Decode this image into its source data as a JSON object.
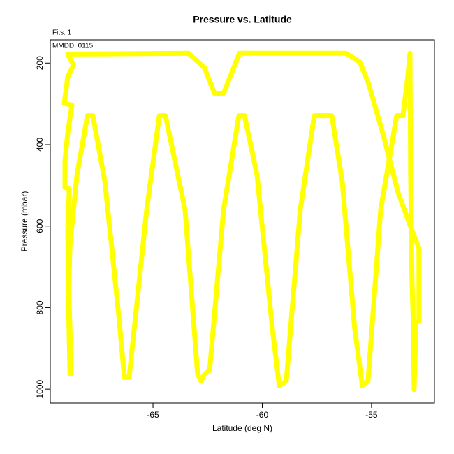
{
  "chart_data": {
    "type": "line",
    "title": "Pressure vs. Latitude",
    "subtitle": "Fits: 1",
    "annotation": "MMDD: 0115",
    "xlabel": "Latitude (deg N)",
    "ylabel": "Pressure (mbar)",
    "xlim": [
      -69.7,
      -52.12
    ],
    "ylim": [
      1034,
      143
    ],
    "xticks": [
      -65,
      -60,
      -55
    ],
    "yticks": [
      200,
      400,
      600,
      800,
      1000
    ],
    "grid": false,
    "x": [
      -68.74,
      -68.8,
      -68.87,
      -68.9,
      -68.83,
      -69.03,
      -69.03,
      -68.9,
      -68.71,
      -69.06,
      -68.9,
      -68.64,
      -68.9,
      -63.37,
      -62.64,
      -62.19,
      -61.77,
      -61.04,
      -56.18,
      -55.54,
      -55.13,
      -54.49,
      -53.79,
      -53.15,
      -52.83,
      -52.83,
      -52.96,
      -53.05,
      -53.08,
      -53.15,
      -53.21,
      -53.24,
      -53.34,
      -53.56,
      -53.85,
      -54.58,
      -55.16,
      -55.42,
      -55.77,
      -56.34,
      -56.82,
      -57.62,
      -58.26,
      -58.9,
      -59.22,
      -59.54,
      -60.24,
      -60.81,
      -61.07,
      -61.77,
      -62.41,
      -62.64,
      -62.8,
      -62.96,
      -63.53,
      -64.43,
      -64.71,
      -65.29,
      -66.09,
      -66.31,
      -66.57,
      -67.2,
      -67.75,
      -68.0,
      -68.48,
      -68.8,
      -68.87,
      -68.8
    ],
    "series": [
      {
        "color": "#ffff00",
        "values": [
          963,
          851,
          731,
          611,
          509,
          505,
          440,
          371,
          303,
          299,
          234,
          205,
          178,
          176,
          212,
          274,
          274,
          176,
          176,
          197,
          251,
          371,
          517,
          611,
          654,
          834,
          834,
          1001,
          851,
          731,
          474,
          176,
          234,
          329,
          329,
          560,
          980,
          992,
          851,
          491,
          329,
          329,
          560,
          980,
          992,
          851,
          474,
          329,
          329,
          560,
          954,
          963,
          980,
          963,
          560,
          329,
          329,
          560,
          971,
          971,
          817,
          491,
          329,
          329,
          474,
          646,
          783,
          963
        ]
      }
    ]
  }
}
